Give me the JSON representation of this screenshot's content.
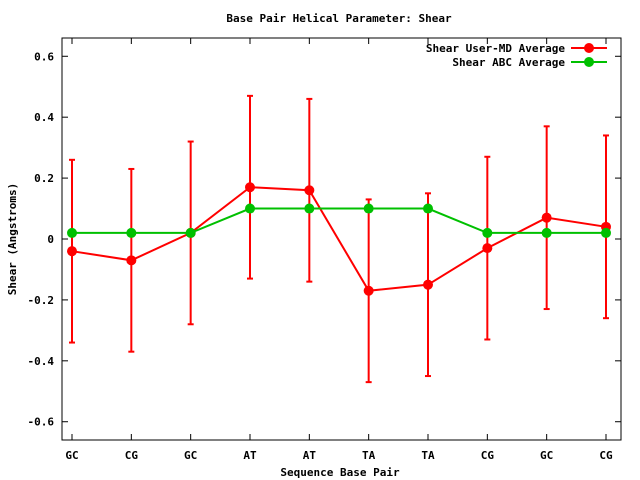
{
  "chart_data": {
    "type": "line",
    "title": "Base Pair Helical Parameter: Shear",
    "xlabel": "Sequence Base Pair",
    "ylabel": "Shear (Angstroms)",
    "categories": [
      "GC",
      "CG",
      "GC",
      "AT",
      "AT",
      "TA",
      "TA",
      "CG",
      "GC",
      "CG"
    ],
    "ylim": [
      -0.66,
      0.66
    ],
    "yticks": [
      -0.6,
      -0.4,
      -0.2,
      0,
      0.2,
      0.4,
      0.6
    ],
    "ytick_labels": [
      "-0.6",
      "-0.4",
      "-0.2",
      "0",
      "0.2",
      "0.4",
      "0.6"
    ],
    "legend_position": "top-right",
    "grid": false,
    "series": [
      {
        "name": "Shear User-MD Average",
        "color": "#ff0000",
        "values": [
          -0.04,
          -0.07,
          0.02,
          0.17,
          0.16,
          -0.17,
          -0.15,
          -0.03,
          0.07,
          0.04
        ],
        "error_low": [
          -0.34,
          -0.37,
          -0.28,
          -0.13,
          -0.14,
          -0.47,
          -0.45,
          -0.33,
          -0.23,
          -0.26
        ],
        "error_high": [
          0.26,
          0.23,
          0.32,
          0.47,
          0.46,
          0.13,
          0.15,
          0.27,
          0.37,
          0.34
        ]
      },
      {
        "name": "Shear ABC Average",
        "color": "#00c000",
        "values": [
          0.02,
          0.02,
          0.02,
          0.1,
          0.1,
          0.1,
          0.1,
          0.02,
          0.02,
          0.02
        ]
      }
    ]
  }
}
